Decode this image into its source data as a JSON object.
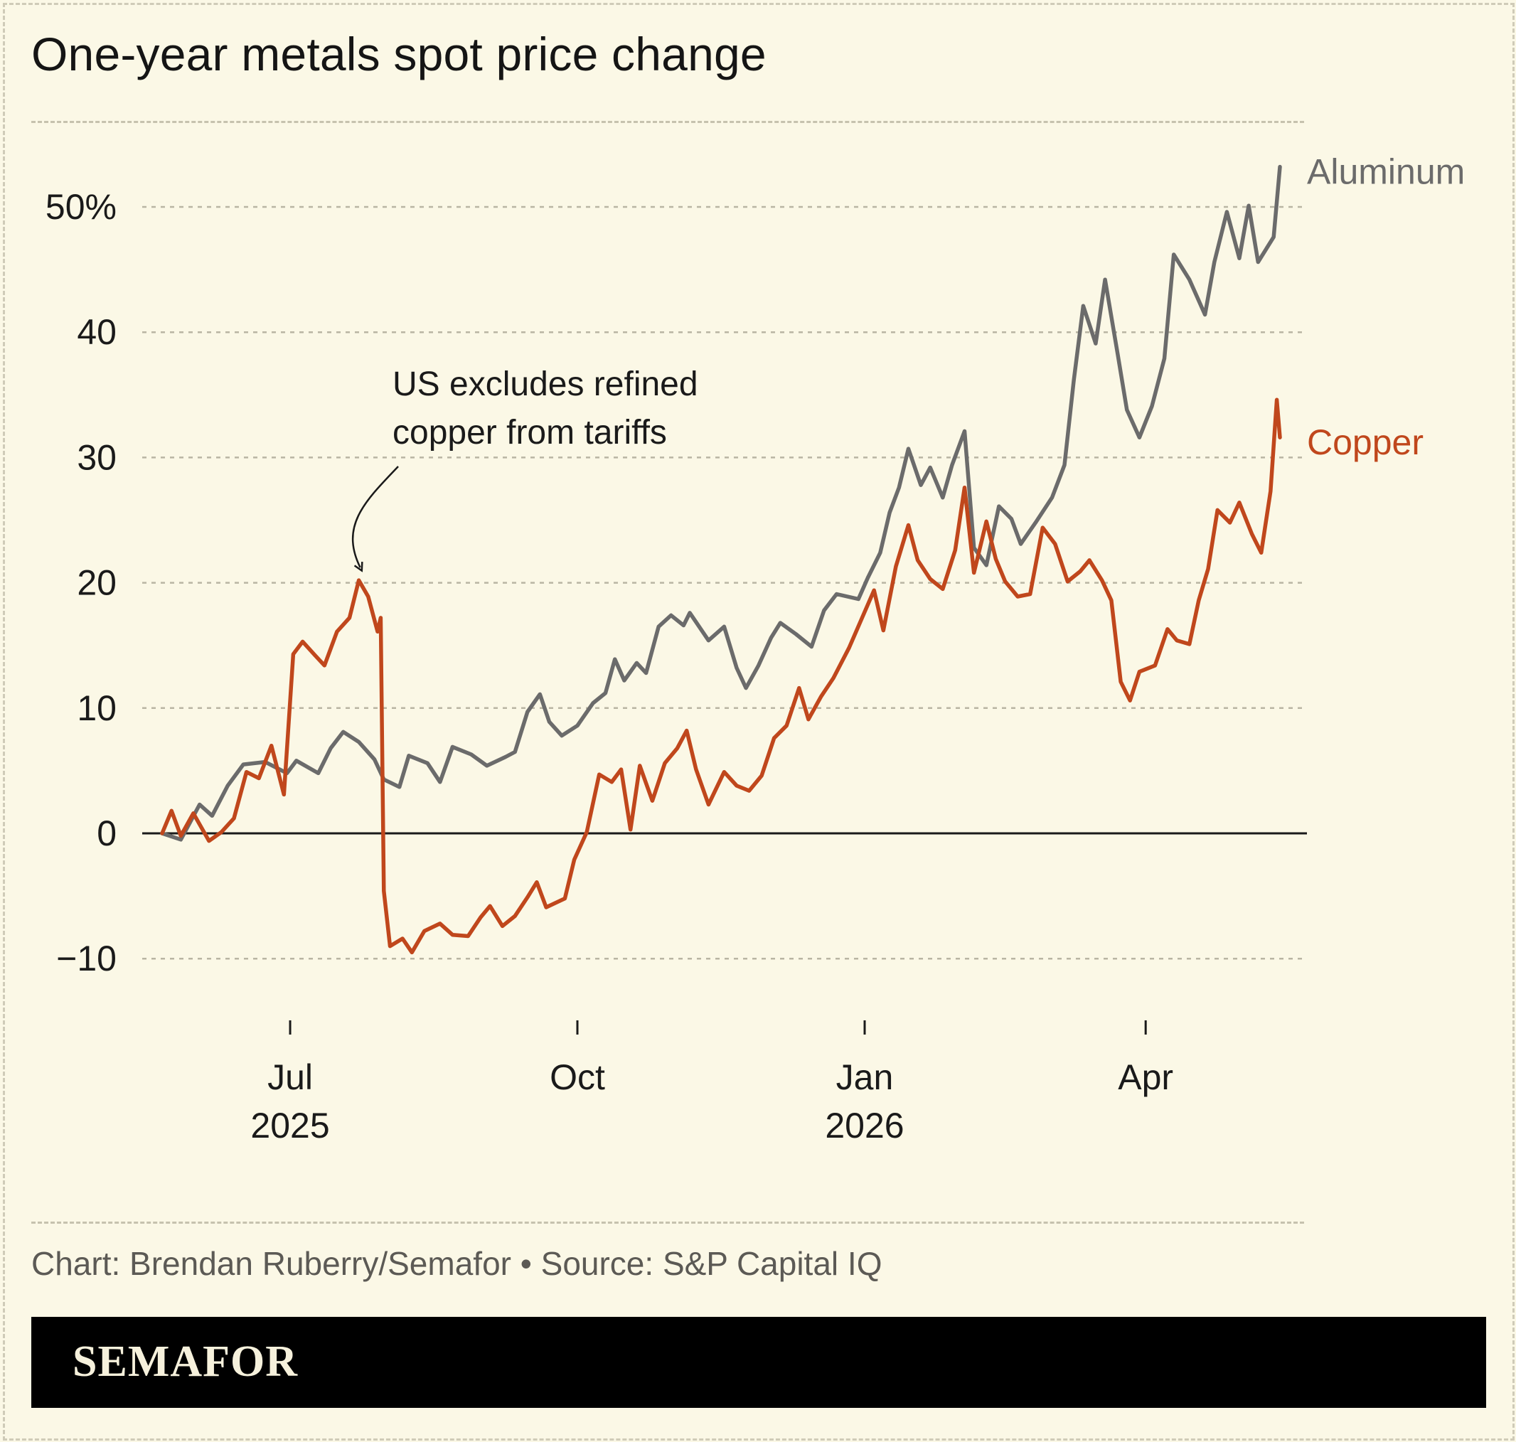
{
  "title": "One-year metals spot price change",
  "credit": "Chart: Brendan Ruberry/Semafor • Source: S&P Capital IQ",
  "brand": "SEMAFOR",
  "colors": {
    "background": "#fbf8e6",
    "aluminum": "#6b6b6b",
    "copper": "#c0471c",
    "footer": "#000000"
  },
  "chart_data": {
    "type": "line",
    "title": "One-year metals spot price change",
    "ylabel": "",
    "xlabel": "",
    "ylim": [
      -14,
      55
    ],
    "y_ticks": [
      {
        "value": 50,
        "label": "50%"
      },
      {
        "value": 40,
        "label": "40"
      },
      {
        "value": 30,
        "label": "30"
      },
      {
        "value": 20,
        "label": "20"
      },
      {
        "value": 10,
        "label": "10"
      },
      {
        "value": 0,
        "label": "0"
      },
      {
        "value": -10,
        "label": "−10"
      }
    ],
    "x_domain": [
      "2025-05-21",
      "2026-05-14"
    ],
    "x_ticks": [
      {
        "date": "2025-07-01",
        "label": [
          "Jul",
          "2025"
        ]
      },
      {
        "date": "2025-10-01",
        "label": [
          "Oct"
        ]
      },
      {
        "date": "2026-01-01",
        "label": [
          "Jan",
          "2026"
        ]
      },
      {
        "date": "2026-04-01",
        "label": [
          "Apr"
        ]
      }
    ],
    "grid": "horizontal dashed",
    "annotation": {
      "text": [
        "US excludes refined",
        "copper from tariffs"
      ],
      "date": "2025-07-23",
      "value": 20.2
    },
    "series": [
      {
        "name": "Aluminum",
        "color": "#6b6b6b",
        "points": [
          [
            "2025-05-21",
            0
          ],
          [
            "2025-05-27",
            -0.5
          ],
          [
            "2025-06-02",
            2.3
          ],
          [
            "2025-06-06",
            1.4
          ],
          [
            "2025-06-11",
            3.8
          ],
          [
            "2025-06-16",
            5.5
          ],
          [
            "2025-06-23",
            5.7
          ],
          [
            "2025-06-30",
            4.8
          ],
          [
            "2025-07-03",
            5.8
          ],
          [
            "2025-07-10",
            4.8
          ],
          [
            "2025-07-14",
            6.8
          ],
          [
            "2025-07-18",
            8.1
          ],
          [
            "2025-07-23",
            7.3
          ],
          [
            "2025-07-28",
            5.9
          ],
          [
            "2025-07-31",
            4.3
          ],
          [
            "2025-08-05",
            3.7
          ],
          [
            "2025-08-08",
            6.2
          ],
          [
            "2025-08-14",
            5.6
          ],
          [
            "2025-08-18",
            4.1
          ],
          [
            "2025-08-22",
            6.9
          ],
          [
            "2025-08-28",
            6.3
          ],
          [
            "2025-09-02",
            5.4
          ],
          [
            "2025-09-08",
            6.1
          ],
          [
            "2025-09-11",
            6.5
          ],
          [
            "2025-09-15",
            9.7
          ],
          [
            "2025-09-19",
            11.1
          ],
          [
            "2025-09-22",
            8.9
          ],
          [
            "2025-09-26",
            7.8
          ],
          [
            "2025-10-01",
            8.6
          ],
          [
            "2025-10-06",
            10.4
          ],
          [
            "2025-10-10",
            11.2
          ],
          [
            "2025-10-13",
            13.9
          ],
          [
            "2025-10-16",
            12.2
          ],
          [
            "2025-10-20",
            13.6
          ],
          [
            "2025-10-23",
            12.8
          ],
          [
            "2025-10-27",
            16.5
          ],
          [
            "2025-10-31",
            17.4
          ],
          [
            "2025-11-04",
            16.6
          ],
          [
            "2025-11-06",
            17.6
          ],
          [
            "2025-11-12",
            15.4
          ],
          [
            "2025-11-17",
            16.5
          ],
          [
            "2025-11-21",
            13.2
          ],
          [
            "2025-11-24",
            11.6
          ],
          [
            "2025-11-28",
            13.4
          ],
          [
            "2025-12-02",
            15.6
          ],
          [
            "2025-12-05",
            16.8
          ],
          [
            "2025-12-10",
            15.9
          ],
          [
            "2025-12-15",
            14.9
          ],
          [
            "2025-12-19",
            17.8
          ],
          [
            "2025-12-23",
            19.1
          ],
          [
            "2025-12-30",
            18.7
          ],
          [
            "2026-01-02",
            20.4
          ],
          [
            "2026-01-06",
            22.4
          ],
          [
            "2026-01-09",
            25.6
          ],
          [
            "2026-01-12",
            27.6
          ],
          [
            "2026-01-15",
            30.7
          ],
          [
            "2026-01-19",
            27.8
          ],
          [
            "2026-01-22",
            29.2
          ],
          [
            "2026-01-26",
            26.8
          ],
          [
            "2026-01-29",
            29.4
          ],
          [
            "2026-02-02",
            32.1
          ],
          [
            "2026-02-05",
            22.8
          ],
          [
            "2026-02-09",
            21.4
          ],
          [
            "2026-02-13",
            26.1
          ],
          [
            "2026-02-17",
            25.1
          ],
          [
            "2026-02-20",
            23.1
          ],
          [
            "2026-02-25",
            24.9
          ],
          [
            "2026-03-02",
            26.8
          ],
          [
            "2026-03-06",
            29.4
          ],
          [
            "2026-03-09",
            36.2
          ],
          [
            "2026-03-12",
            42.1
          ],
          [
            "2026-03-16",
            39.1
          ],
          [
            "2026-03-19",
            44.2
          ],
          [
            "2026-03-23",
            38.3
          ],
          [
            "2026-03-26",
            33.8
          ],
          [
            "2026-03-30",
            31.6
          ],
          [
            "2026-04-03",
            34.1
          ],
          [
            "2026-04-07",
            37.9
          ],
          [
            "2026-04-10",
            46.2
          ],
          [
            "2026-04-15",
            44.2
          ],
          [
            "2026-04-20",
            41.4
          ],
          [
            "2026-04-23",
            45.6
          ],
          [
            "2026-04-27",
            49.6
          ],
          [
            "2026-05-01",
            45.9
          ],
          [
            "2026-05-04",
            50.1
          ],
          [
            "2026-05-07",
            45.6
          ],
          [
            "2026-05-12",
            47.6
          ],
          [
            "2026-05-14",
            53.2
          ]
        ]
      },
      {
        "name": "Copper",
        "color": "#c0471c",
        "points": [
          [
            "2025-05-21",
            0
          ],
          [
            "2025-05-24",
            1.8
          ],
          [
            "2025-05-27",
            -0.2
          ],
          [
            "2025-05-31",
            1.6
          ],
          [
            "2025-06-05",
            -0.6
          ],
          [
            "2025-06-09",
            0.1
          ],
          [
            "2025-06-13",
            1.2
          ],
          [
            "2025-06-17",
            4.9
          ],
          [
            "2025-06-21",
            4.4
          ],
          [
            "2025-06-25",
            7.0
          ],
          [
            "2025-06-29",
            3.1
          ],
          [
            "2025-07-02",
            14.3
          ],
          [
            "2025-07-05",
            15.3
          ],
          [
            "2025-07-09",
            14.2
          ],
          [
            "2025-07-12",
            13.4
          ],
          [
            "2025-07-16",
            16.1
          ],
          [
            "2025-07-20",
            17.2
          ],
          [
            "2025-07-23",
            20.2
          ],
          [
            "2025-07-26",
            18.9
          ],
          [
            "2025-07-29",
            16.1
          ],
          [
            "2025-07-30",
            17.2
          ],
          [
            "2025-07-31",
            -4.6
          ],
          [
            "2025-08-02",
            -9.0
          ],
          [
            "2025-08-06",
            -8.4
          ],
          [
            "2025-08-09",
            -9.5
          ],
          [
            "2025-08-13",
            -7.8
          ],
          [
            "2025-08-18",
            -7.2
          ],
          [
            "2025-08-22",
            -8.1
          ],
          [
            "2025-08-27",
            -8.2
          ],
          [
            "2025-08-31",
            -6.7
          ],
          [
            "2025-09-03",
            -5.8
          ],
          [
            "2025-09-07",
            -7.4
          ],
          [
            "2025-09-11",
            -6.6
          ],
          [
            "2025-09-15",
            -5.1
          ],
          [
            "2025-09-18",
            -3.9
          ],
          [
            "2025-09-21",
            -5.9
          ],
          [
            "2025-09-27",
            -5.2
          ],
          [
            "2025-09-30",
            -2.1
          ],
          [
            "2025-10-04",
            0.1
          ],
          [
            "2025-10-08",
            4.7
          ],
          [
            "2025-10-12",
            4.1
          ],
          [
            "2025-10-15",
            5.1
          ],
          [
            "2025-10-18",
            0.3
          ],
          [
            "2025-10-21",
            5.4
          ],
          [
            "2025-10-25",
            2.6
          ],
          [
            "2025-10-29",
            5.6
          ],
          [
            "2025-11-02",
            6.8
          ],
          [
            "2025-11-05",
            8.2
          ],
          [
            "2025-11-08",
            5.1
          ],
          [
            "2025-11-12",
            2.3
          ],
          [
            "2025-11-17",
            4.9
          ],
          [
            "2025-11-21",
            3.8
          ],
          [
            "2025-11-25",
            3.4
          ],
          [
            "2025-11-29",
            4.6
          ],
          [
            "2025-12-03",
            7.6
          ],
          [
            "2025-12-07",
            8.6
          ],
          [
            "2025-12-11",
            11.6
          ],
          [
            "2025-12-14",
            9.1
          ],
          [
            "2025-12-18",
            10.9
          ],
          [
            "2025-12-22",
            12.4
          ],
          [
            "2025-12-27",
            14.8
          ],
          [
            "2025-12-31",
            17.1
          ],
          [
            "2026-01-04",
            19.4
          ],
          [
            "2026-01-07",
            16.2
          ],
          [
            "2026-01-11",
            21.3
          ],
          [
            "2026-01-15",
            24.6
          ],
          [
            "2026-01-18",
            21.8
          ],
          [
            "2026-01-22",
            20.3
          ],
          [
            "2026-01-26",
            19.5
          ],
          [
            "2026-01-30",
            22.6
          ],
          [
            "2026-02-02",
            27.6
          ],
          [
            "2026-02-05",
            20.8
          ],
          [
            "2026-02-09",
            24.9
          ],
          [
            "2026-02-12",
            21.9
          ],
          [
            "2026-02-15",
            20.1
          ],
          [
            "2026-02-19",
            18.9
          ],
          [
            "2026-02-23",
            19.1
          ],
          [
            "2026-02-27",
            24.4
          ],
          [
            "2026-03-03",
            23.1
          ],
          [
            "2026-03-07",
            20.1
          ],
          [
            "2026-03-11",
            20.9
          ],
          [
            "2026-03-14",
            21.8
          ],
          [
            "2026-03-18",
            20.2
          ],
          [
            "2026-03-21",
            18.6
          ],
          [
            "2026-03-24",
            12.1
          ],
          [
            "2026-03-27",
            10.6
          ],
          [
            "2026-03-30",
            12.9
          ],
          [
            "2026-04-04",
            13.4
          ],
          [
            "2026-04-08",
            16.3
          ],
          [
            "2026-04-11",
            15.4
          ],
          [
            "2026-04-15",
            15.1
          ],
          [
            "2026-04-18",
            18.6
          ],
          [
            "2026-04-21",
            21.1
          ],
          [
            "2026-04-24",
            25.8
          ],
          [
            "2026-04-28",
            24.8
          ],
          [
            "2026-05-01",
            26.4
          ],
          [
            "2026-05-05",
            23.9
          ],
          [
            "2026-05-08",
            22.4
          ],
          [
            "2026-05-11",
            27.3
          ],
          [
            "2026-05-13",
            34.6
          ],
          [
            "2026-05-14",
            31.6
          ]
        ]
      }
    ]
  }
}
